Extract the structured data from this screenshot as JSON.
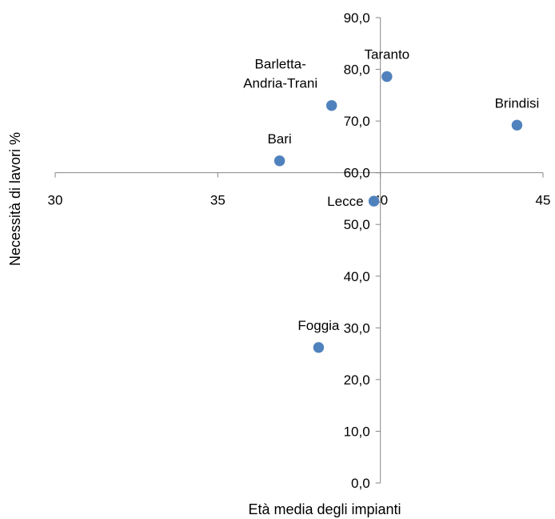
{
  "chart_data": {
    "type": "scatter",
    "xlabel": "Età media degli impianti",
    "ylabel": "Necessità di lavori %",
    "xlim": [
      30,
      45
    ],
    "ylim": [
      0,
      90
    ],
    "x_ticks": [
      "30",
      "35",
      "40",
      "45"
    ],
    "y_ticks": [
      "0,0",
      "10,0",
      "20,0",
      "30,0",
      "40,0",
      "50,0",
      "60,0",
      "70,0",
      "80,0",
      "90,0"
    ],
    "x_axis_crosses_y_at": 60,
    "y_axis_crosses_x_at": 40,
    "grid": false,
    "legend": "none",
    "marker_color": "#4F81BD",
    "points": [
      {
        "label": "Taranto",
        "x": 40.2,
        "y": 78.6
      },
      {
        "label": "Barletta-\nAndria-Trani",
        "x": 38.5,
        "y": 73.0
      },
      {
        "label": "Brindisi",
        "x": 44.2,
        "y": 69.2
      },
      {
        "label": "Bari",
        "x": 36.9,
        "y": 62.3
      },
      {
        "label": "Lecce",
        "x": 39.8,
        "y": 54.5
      },
      {
        "label": "Foggia",
        "x": 38.1,
        "y": 26.2
      }
    ]
  }
}
